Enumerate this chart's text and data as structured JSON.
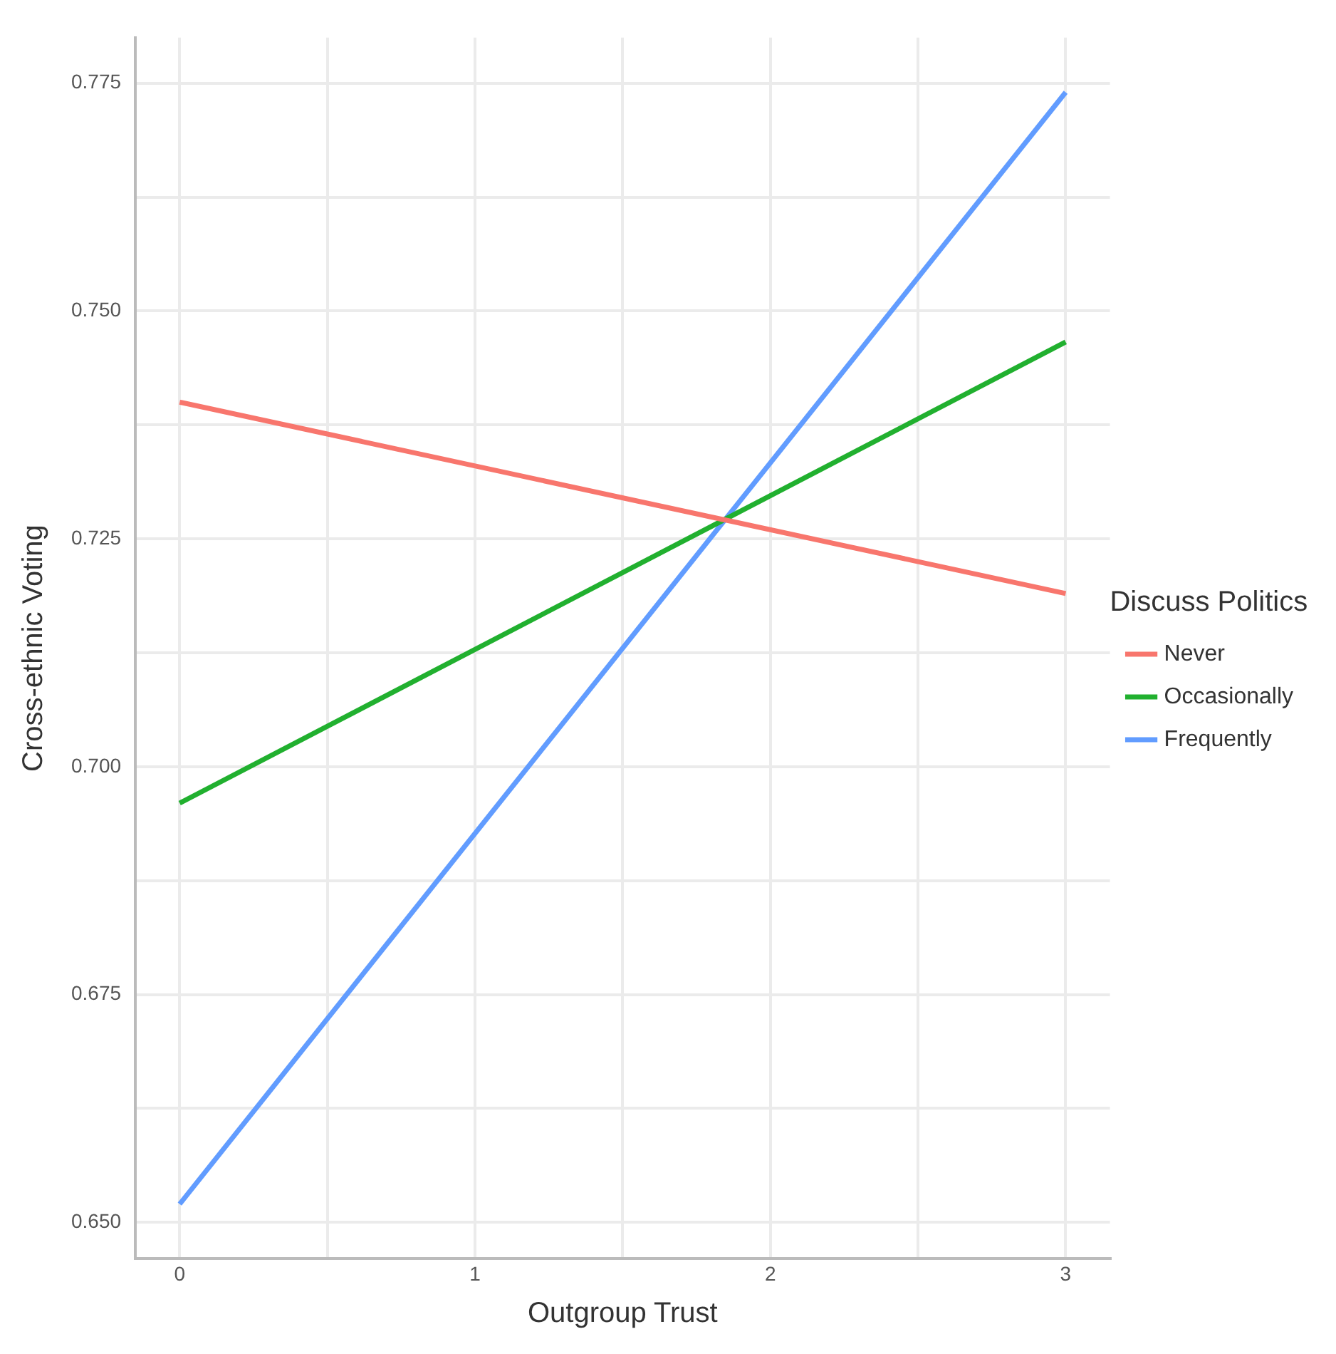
{
  "chart_data": {
    "type": "line",
    "xlabel": "Outgroup Trust",
    "ylabel": "Cross-ethnic Voting",
    "legend_title": "Discuss Politics",
    "legend": "right",
    "grid": true,
    "marker": "none",
    "line_style": "solid",
    "xlim": [
      -0.15,
      3.15
    ],
    "xticks": [
      0,
      {
        "value": 0.5,
        "label": null
      },
      1,
      {
        "value": 1.5,
        "label": null
      },
      2,
      {
        "value": 2.5,
        "label": null
      },
      3
    ],
    "ylim": [
      0.646,
      0.78
    ],
    "yticks": [
      {
        "value": 0.65,
        "label": "0.650"
      },
      {
        "value": 0.6625,
        "label": null
      },
      0.675,
      {
        "value": 0.6875,
        "label": null
      },
      {
        "value": 0.7,
        "label": "0.700"
      },
      {
        "value": 0.7125,
        "label": null
      },
      0.725,
      {
        "value": 0.7375,
        "label": null
      },
      {
        "value": 0.75,
        "label": "0.750"
      },
      {
        "value": 0.7625,
        "label": null
      },
      0.775
    ],
    "x": [
      0,
      3
    ],
    "series": [
      {
        "name": "Never",
        "color": "#f8766d",
        "values": [
          0.74,
          0.719
        ]
      },
      {
        "name": "Occasionally",
        "color": "#21b02f",
        "values": [
          0.696,
          0.7466
        ]
      },
      {
        "name": "Frequently",
        "color": "#619cff",
        "values": [
          0.652,
          0.774
        ]
      }
    ]
  }
}
